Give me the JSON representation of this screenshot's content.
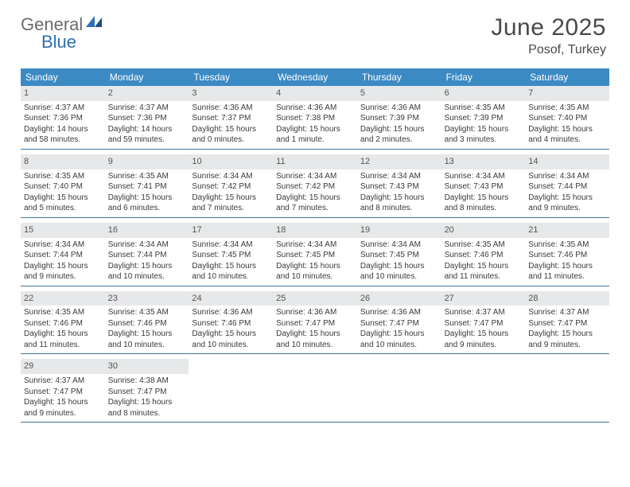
{
  "brand": {
    "part1": "General",
    "part2": "Blue"
  },
  "title": {
    "month": "June 2025",
    "location": "Posof, Turkey"
  },
  "style": {
    "header_bg": "#3b8ac4",
    "header_fg": "#ffffff",
    "daynum_bg": "#e7e8e9",
    "week_border": "#3b78a8",
    "text_color": "#3a3a3a",
    "title_color": "#4a4a4a",
    "logo_gray": "#6b6b6b",
    "logo_blue": "#2f6fb3",
    "month_fontsize": 30,
    "location_fontsize": 16,
    "weekday_fontsize": 12,
    "daynum_fontsize": 11,
    "body_fontsize": 10
  },
  "weekdays": [
    "Sunday",
    "Monday",
    "Tuesday",
    "Wednesday",
    "Thursday",
    "Friday",
    "Saturday"
  ],
  "days": [
    {
      "n": "1",
      "sr": "Sunrise: 4:37 AM",
      "ss": "Sunset: 7:36 PM",
      "d1": "Daylight: 14 hours",
      "d2": "and 58 minutes."
    },
    {
      "n": "2",
      "sr": "Sunrise: 4:37 AM",
      "ss": "Sunset: 7:36 PM",
      "d1": "Daylight: 14 hours",
      "d2": "and 59 minutes."
    },
    {
      "n": "3",
      "sr": "Sunrise: 4:36 AM",
      "ss": "Sunset: 7:37 PM",
      "d1": "Daylight: 15 hours",
      "d2": "and 0 minutes."
    },
    {
      "n": "4",
      "sr": "Sunrise: 4:36 AM",
      "ss": "Sunset: 7:38 PM",
      "d1": "Daylight: 15 hours",
      "d2": "and 1 minute."
    },
    {
      "n": "5",
      "sr": "Sunrise: 4:36 AM",
      "ss": "Sunset: 7:39 PM",
      "d1": "Daylight: 15 hours",
      "d2": "and 2 minutes."
    },
    {
      "n": "6",
      "sr": "Sunrise: 4:35 AM",
      "ss": "Sunset: 7:39 PM",
      "d1": "Daylight: 15 hours",
      "d2": "and 3 minutes."
    },
    {
      "n": "7",
      "sr": "Sunrise: 4:35 AM",
      "ss": "Sunset: 7:40 PM",
      "d1": "Daylight: 15 hours",
      "d2": "and 4 minutes."
    },
    {
      "n": "8",
      "sr": "Sunrise: 4:35 AM",
      "ss": "Sunset: 7:40 PM",
      "d1": "Daylight: 15 hours",
      "d2": "and 5 minutes."
    },
    {
      "n": "9",
      "sr": "Sunrise: 4:35 AM",
      "ss": "Sunset: 7:41 PM",
      "d1": "Daylight: 15 hours",
      "d2": "and 6 minutes."
    },
    {
      "n": "10",
      "sr": "Sunrise: 4:34 AM",
      "ss": "Sunset: 7:42 PM",
      "d1": "Daylight: 15 hours",
      "d2": "and 7 minutes."
    },
    {
      "n": "11",
      "sr": "Sunrise: 4:34 AM",
      "ss": "Sunset: 7:42 PM",
      "d1": "Daylight: 15 hours",
      "d2": "and 7 minutes."
    },
    {
      "n": "12",
      "sr": "Sunrise: 4:34 AM",
      "ss": "Sunset: 7:43 PM",
      "d1": "Daylight: 15 hours",
      "d2": "and 8 minutes."
    },
    {
      "n": "13",
      "sr": "Sunrise: 4:34 AM",
      "ss": "Sunset: 7:43 PM",
      "d1": "Daylight: 15 hours",
      "d2": "and 8 minutes."
    },
    {
      "n": "14",
      "sr": "Sunrise: 4:34 AM",
      "ss": "Sunset: 7:44 PM",
      "d1": "Daylight: 15 hours",
      "d2": "and 9 minutes."
    },
    {
      "n": "15",
      "sr": "Sunrise: 4:34 AM",
      "ss": "Sunset: 7:44 PM",
      "d1": "Daylight: 15 hours",
      "d2": "and 9 minutes."
    },
    {
      "n": "16",
      "sr": "Sunrise: 4:34 AM",
      "ss": "Sunset: 7:44 PM",
      "d1": "Daylight: 15 hours",
      "d2": "and 10 minutes."
    },
    {
      "n": "17",
      "sr": "Sunrise: 4:34 AM",
      "ss": "Sunset: 7:45 PM",
      "d1": "Daylight: 15 hours",
      "d2": "and 10 minutes."
    },
    {
      "n": "18",
      "sr": "Sunrise: 4:34 AM",
      "ss": "Sunset: 7:45 PM",
      "d1": "Daylight: 15 hours",
      "d2": "and 10 minutes."
    },
    {
      "n": "19",
      "sr": "Sunrise: 4:34 AM",
      "ss": "Sunset: 7:45 PM",
      "d1": "Daylight: 15 hours",
      "d2": "and 10 minutes."
    },
    {
      "n": "20",
      "sr": "Sunrise: 4:35 AM",
      "ss": "Sunset: 7:46 PM",
      "d1": "Daylight: 15 hours",
      "d2": "and 11 minutes."
    },
    {
      "n": "21",
      "sr": "Sunrise: 4:35 AM",
      "ss": "Sunset: 7:46 PM",
      "d1": "Daylight: 15 hours",
      "d2": "and 11 minutes."
    },
    {
      "n": "22",
      "sr": "Sunrise: 4:35 AM",
      "ss": "Sunset: 7:46 PM",
      "d1": "Daylight: 15 hours",
      "d2": "and 11 minutes."
    },
    {
      "n": "23",
      "sr": "Sunrise: 4:35 AM",
      "ss": "Sunset: 7:46 PM",
      "d1": "Daylight: 15 hours",
      "d2": "and 10 minutes."
    },
    {
      "n": "24",
      "sr": "Sunrise: 4:36 AM",
      "ss": "Sunset: 7:46 PM",
      "d1": "Daylight: 15 hours",
      "d2": "and 10 minutes."
    },
    {
      "n": "25",
      "sr": "Sunrise: 4:36 AM",
      "ss": "Sunset: 7:47 PM",
      "d1": "Daylight: 15 hours",
      "d2": "and 10 minutes."
    },
    {
      "n": "26",
      "sr": "Sunrise: 4:36 AM",
      "ss": "Sunset: 7:47 PM",
      "d1": "Daylight: 15 hours",
      "d2": "and 10 minutes."
    },
    {
      "n": "27",
      "sr": "Sunrise: 4:37 AM",
      "ss": "Sunset: 7:47 PM",
      "d1": "Daylight: 15 hours",
      "d2": "and 9 minutes."
    },
    {
      "n": "28",
      "sr": "Sunrise: 4:37 AM",
      "ss": "Sunset: 7:47 PM",
      "d1": "Daylight: 15 hours",
      "d2": "and 9 minutes."
    },
    {
      "n": "29",
      "sr": "Sunrise: 4:37 AM",
      "ss": "Sunset: 7:47 PM",
      "d1": "Daylight: 15 hours",
      "d2": "and 9 minutes."
    },
    {
      "n": "30",
      "sr": "Sunrise: 4:38 AM",
      "ss": "Sunset: 7:47 PM",
      "d1": "Daylight: 15 hours",
      "d2": "and 8 minutes."
    }
  ]
}
